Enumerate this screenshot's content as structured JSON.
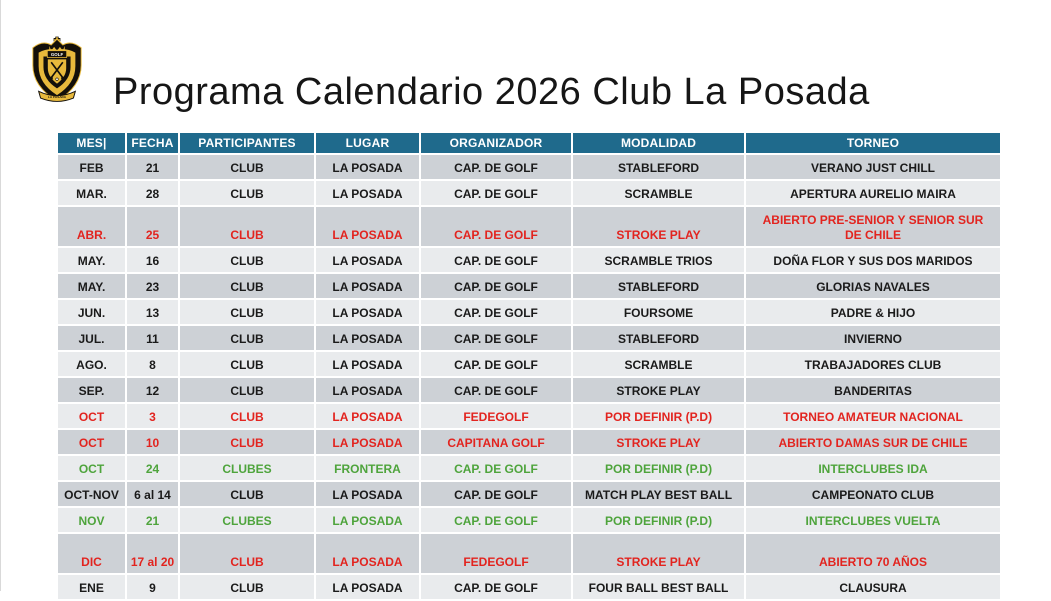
{
  "title": "Programa Calendario 2026 Club La Posada",
  "logo": {
    "icon": "club-la-posada-crest",
    "band_text": "GOLF",
    "ribbon_text": "LA POSADA",
    "gold": "#E8B93C",
    "black": "#14100A"
  },
  "table": {
    "header_bg": "#1F6A8C",
    "header_text_color": "#FFFFFF",
    "row_colors": {
      "dark": "#CDD1D6",
      "light": "#E9EBED"
    },
    "text_colors": {
      "black": "#1A1A1A",
      "red": "#E2241F",
      "green": "#4EA43C"
    },
    "columns": [
      {
        "key": "mes",
        "label": "MES|"
      },
      {
        "key": "fecha",
        "label": "FECHA"
      },
      {
        "key": "participantes",
        "label": "PARTICIPANTES"
      },
      {
        "key": "lugar",
        "label": "LUGAR"
      },
      {
        "key": "organizador",
        "label": "ORGANIZADOR"
      },
      {
        "key": "modalidad",
        "label": "MODALIDAD"
      },
      {
        "key": "torneo",
        "label": "TORNEO"
      }
    ],
    "rows": [
      {
        "mes": "FEB",
        "fecha": "21",
        "participantes": "CLUB",
        "lugar": "LA POSADA",
        "organizador": "CAP. DE GOLF",
        "modalidad": "STABLEFORD",
        "torneo": "VERANO JUST CHILL",
        "color": "black",
        "tall": false
      },
      {
        "mes": "MAR.",
        "fecha": "28",
        "participantes": "CLUB",
        "lugar": "LA POSADA",
        "organizador": "CAP. DE GOLF",
        "modalidad": "SCRAMBLE",
        "torneo": "APERTURA AURELIO  MAIRA",
        "color": "black",
        "tall": false
      },
      {
        "mes": "ABR.",
        "fecha": "25",
        "participantes": "CLUB",
        "lugar": "LA POSADA",
        "organizador": "CAP. DE GOLF",
        "modalidad": "STROKE PLAY",
        "torneo": "ABIERTO PRE-SENIOR Y SENIOR SUR DE CHILE",
        "color": "red",
        "tall": true
      },
      {
        "mes": "MAY.",
        "fecha": "16",
        "participantes": "CLUB",
        "lugar": "LA POSADA",
        "organizador": "CAP. DE GOLF",
        "modalidad": "SCRAMBLE TRIOS",
        "torneo": "DOÑA FLOR Y SUS DOS MARIDOS",
        "color": "black",
        "tall": false
      },
      {
        "mes": "MAY.",
        "fecha": "23",
        "participantes": "CLUB",
        "lugar": "LA POSADA",
        "organizador": "CAP. DE GOLF",
        "modalidad": "STABLEFORD",
        "torneo": "GLORIAS NAVALES",
        "color": "black",
        "tall": false
      },
      {
        "mes": "JUN.",
        "fecha": "13",
        "participantes": "CLUB",
        "lugar": "LA POSADA",
        "organizador": "CAP. DE GOLF",
        "modalidad": "FOURSOME",
        "torneo": "PADRE & HIJO",
        "color": "black",
        "tall": false
      },
      {
        "mes": "JUL.",
        "fecha": "11",
        "participantes": "CLUB",
        "lugar": "LA POSADA",
        "organizador": "CAP. DE GOLF",
        "modalidad": "STABLEFORD",
        "torneo": "INVIERNO",
        "color": "black",
        "tall": false
      },
      {
        "mes": "AGO.",
        "fecha": "8",
        "participantes": "CLUB",
        "lugar": "LA POSADA",
        "organizador": "CAP. DE GOLF",
        "modalidad": "SCRAMBLE",
        "torneo": "TRABAJADORES CLUB",
        "color": "black",
        "tall": false
      },
      {
        "mes": "SEP.",
        "fecha": "12",
        "participantes": "CLUB",
        "lugar": "LA POSADA",
        "organizador": "CAP. DE GOLF",
        "modalidad": "STROKE PLAY",
        "torneo": "BANDERITAS",
        "color": "black",
        "tall": false
      },
      {
        "mes": "OCT",
        "fecha": "3",
        "participantes": "CLUB",
        "lugar": "LA POSADA",
        "organizador": "FEDEGOLF",
        "modalidad": "POR DEFINIR (P.D)",
        "torneo": "TORNEO AMATEUR NACIONAL",
        "color": "red",
        "tall": false
      },
      {
        "mes": "OCT",
        "fecha": "10",
        "participantes": "CLUB",
        "lugar": "LA POSADA",
        "organizador": "CAPITANA GOLF",
        "modalidad": "STROKE PLAY",
        "torneo": "ABIERTO DAMAS SUR DE CHILE",
        "color": "red",
        "tall": false
      },
      {
        "mes": "OCT",
        "fecha": "24",
        "participantes": "CLUBES",
        "lugar": "FRONTERA",
        "organizador": "CAP. DE GOLF",
        "modalidad": "POR DEFINIR (P.D)",
        "torneo": "INTERCLUBES IDA",
        "color": "green",
        "tall": false
      },
      {
        "mes": "OCT-NOV",
        "fecha": "6 al 14",
        "participantes": "CLUB",
        "lugar": "LA POSADA",
        "organizador": "CAP. DE GOLF",
        "modalidad": "MATCH PLAY BEST BALL",
        "torneo": "CAMPEONATO CLUB",
        "color": "black",
        "tall": false
      },
      {
        "mes": "NOV",
        "fecha": "21",
        "participantes": "CLUBES",
        "lugar": "LA POSADA",
        "organizador": "CAP. DE GOLF",
        "modalidad": "POR DEFINIR (P.D)",
        "torneo": "INTERCLUBES VUELTA",
        "color": "green",
        "tall": false
      },
      {
        "mes": "DIC",
        "fecha": "17 al 20",
        "participantes": "CLUB",
        "lugar": "LA POSADA",
        "organizador": "FEDEGOLF",
        "modalidad": "STROKE PLAY",
        "torneo": "ABIERTO 70 AÑOS",
        "color": "red",
        "tall": true
      },
      {
        "mes": "ENE",
        "fecha": "9",
        "participantes": "CLUB",
        "lugar": "LA POSADA",
        "organizador": "CAP. DE GOLF",
        "modalidad": "FOUR BALL BEST BALL",
        "torneo": "CLAUSURA",
        "color": "black",
        "tall": false
      }
    ]
  }
}
